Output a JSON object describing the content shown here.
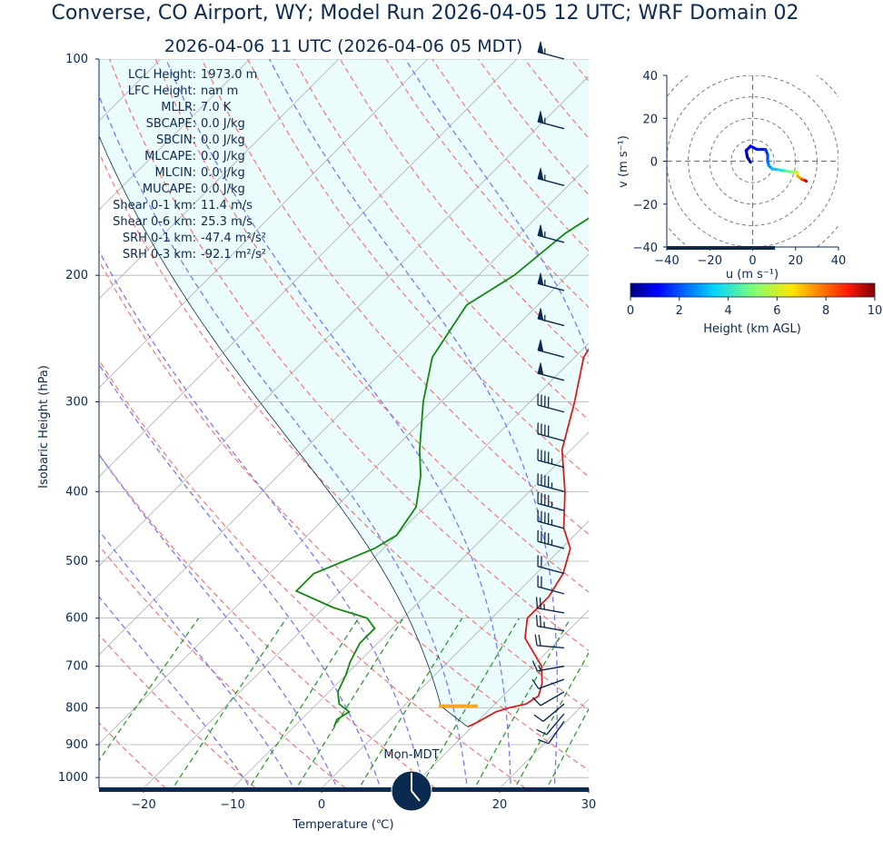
{
  "title": "Converse, CO Airport, WY; Model Run 2026-04-05 12 UTC; WRF Domain 02",
  "subtitle": "2026-04-06 11 UTC  (2026-04-06 05 MDT)",
  "skewt": {
    "xlabel": "Temperature (℃)",
    "ylabel": "Isobaric Height (hPa)",
    "x_ticks": [
      "−20",
      "−10",
      "0",
      "10",
      "20",
      "30"
    ],
    "x_tick_values": [
      -20,
      -10,
      0,
      10,
      20,
      30
    ],
    "y_ticks": [
      "100",
      "200",
      "300",
      "400",
      "500",
      "600",
      "700",
      "800",
      "900",
      "1000"
    ],
    "y_tick_values": [
      100,
      200,
      300,
      400,
      500,
      600,
      700,
      800,
      900,
      1000
    ],
    "xlim": [
      -25,
      30
    ],
    "ylim": [
      1035,
      100
    ]
  },
  "stats": [
    {
      "label": "LCL Height",
      "value": "1973.0 m"
    },
    {
      "label": "LFC Height",
      "value": "nan m"
    },
    {
      "label": "MLLR",
      "value": "7.0 K"
    },
    {
      "label": "SBCAPE",
      "value": "0.0 J/kg"
    },
    {
      "label": "SBCIN",
      "value": "0.0 J/kg"
    },
    {
      "label": "MLCAPE",
      "value": "0.0 J/kg"
    },
    {
      "label": "MLCIN",
      "value": "0.0 J/kg"
    },
    {
      "label": "MUCAPE",
      "value": "0.0 J/kg"
    },
    {
      "label": "Shear 0-1 km",
      "value": "11.4 m/s"
    },
    {
      "label": "Shear 0-6 km",
      "value": "25.3 m/s"
    },
    {
      "label": "SRH 0-1 km",
      "value": "-47.4 m²/s²"
    },
    {
      "label": "SRH 0-3 km",
      "value": "-92.1 m²/s²"
    }
  ],
  "clock_label": "Mon-MDT",
  "hodograph": {
    "xlabel": "u (m s⁻¹)",
    "ylabel": "v (m s⁻¹)",
    "x_ticks": [
      "−40",
      "−20",
      "0",
      "20",
      "40"
    ],
    "y_ticks": [
      "40",
      "20",
      "0",
      "−20",
      "−40"
    ],
    "lim": [
      -40,
      40
    ]
  },
  "colorbar": {
    "label": "Height (km AGL)",
    "ticks": [
      "0",
      "2",
      "4",
      "6",
      "8",
      "10"
    ],
    "range": [
      0,
      10
    ]
  },
  "colors": {
    "text": "#0b2a50",
    "temperature": "#e01a1a",
    "dewpoint": "#13870f",
    "parcel": "#0b2a50",
    "dry_adiabat": "#f08080",
    "moist_adiabat": "#7a7af2",
    "mixing_ratio": "#2e9b2e",
    "isotherm": "#b0b0b0",
    "cape_fill": "#eafcfc",
    "lcl_marker": "#f5a623"
  },
  "chart_data": [
    {
      "type": "line",
      "name": "skew-t",
      "temperature_profile": {
        "p": [
          100,
          115,
          150,
          190,
          220,
          260,
          300,
          350,
          400,
          450,
          480,
          520,
          560,
          600,
          640,
          700,
          740,
          770,
          790,
          800,
          810,
          840,
          850
        ],
        "t": [
          17,
          12,
          2,
          -18,
          -21,
          -19,
          -15,
          -11,
          -6,
          -2,
          1,
          3,
          4,
          4,
          6,
          11,
          13,
          14,
          13.5,
          12,
          11,
          10,
          9.5
        ]
      },
      "dewpoint_profile": {
        "p": [
          100,
          120,
          150,
          175,
          200,
          220,
          260,
          300,
          350,
          380,
          420,
          460,
          480,
          510,
          520,
          550,
          580,
          600,
          620,
          650,
          690,
          720,
          760,
          790,
          810,
          830,
          850
        ],
        "td": [
          -19,
          -27,
          -32,
          -35,
          -36,
          -38,
          -36,
          -32,
          -27,
          -24,
          -21,
          -20,
          -21,
          -24,
          -25,
          -25,
          -19,
          -14,
          -12,
          -12,
          -11,
          -10,
          -9,
          -7.5,
          -5.5,
          -6,
          -5.5
        ]
      },
      "lcl_hpa": 795,
      "lcl_temp_range": [
        3.9,
        8.3
      ],
      "wind_barbs": [
        {
          "p": 100,
          "speed_kt": 55,
          "dir": 285
        },
        {
          "p": 125,
          "speed_kt": 55,
          "dir": 285
        },
        {
          "p": 150,
          "speed_kt": 55,
          "dir": 285
        },
        {
          "p": 180,
          "speed_kt": 55,
          "dir": 285
        },
        {
          "p": 210,
          "speed_kt": 55,
          "dir": 285
        },
        {
          "p": 235,
          "speed_kt": 55,
          "dir": 285
        },
        {
          "p": 260,
          "speed_kt": 50,
          "dir": 285
        },
        {
          "p": 280,
          "speed_kt": 50,
          "dir": 285
        },
        {
          "p": 310,
          "speed_kt": 40,
          "dir": 285
        },
        {
          "p": 340,
          "speed_kt": 40,
          "dir": 285
        },
        {
          "p": 370,
          "speed_kt": 45,
          "dir": 285
        },
        {
          "p": 400,
          "speed_kt": 45,
          "dir": 285
        },
        {
          "p": 425,
          "speed_kt": 45,
          "dir": 285
        },
        {
          "p": 450,
          "speed_kt": 45,
          "dir": 285
        },
        {
          "p": 480,
          "speed_kt": 45,
          "dir": 285
        },
        {
          "p": 520,
          "speed_kt": 20,
          "dir": 285
        },
        {
          "p": 555,
          "speed_kt": 20,
          "dir": 285
        },
        {
          "p": 590,
          "speed_kt": 25,
          "dir": 280
        },
        {
          "p": 625,
          "speed_kt": 25,
          "dir": 280
        },
        {
          "p": 660,
          "speed_kt": 20,
          "dir": 275
        },
        {
          "p": 700,
          "speed_kt": 15,
          "dir": 260
        },
        {
          "p": 730,
          "speed_kt": 10,
          "dir": 250
        },
        {
          "p": 760,
          "speed_kt": 10,
          "dir": 240
        },
        {
          "p": 790,
          "speed_kt": 10,
          "dir": 230
        },
        {
          "p": 815,
          "speed_kt": 10,
          "dir": 220
        },
        {
          "p": 835,
          "speed_kt": 10,
          "dir": 215
        }
      ]
    },
    {
      "type": "line",
      "name": "hodograph",
      "points": [
        {
          "u": -1,
          "v": -0.5,
          "h": 0.0
        },
        {
          "u": -2.5,
          "v": 2,
          "h": 0.3
        },
        {
          "u": -3,
          "v": 5,
          "h": 0.6
        },
        {
          "u": -1,
          "v": 7,
          "h": 0.9
        },
        {
          "u": 2,
          "v": 5.5,
          "h": 1.2
        },
        {
          "u": 6,
          "v": 5.5,
          "h": 1.5
        },
        {
          "u": 7,
          "v": 3,
          "h": 1.8
        },
        {
          "u": 7,
          "v": 0,
          "h": 2.1
        },
        {
          "u": 7.5,
          "v": -2,
          "h": 2.5
        },
        {
          "u": 9,
          "v": -3.5,
          "h": 3.0
        },
        {
          "u": 12,
          "v": -4,
          "h": 3.6
        },
        {
          "u": 15,
          "v": -4.5,
          "h": 4.2
        },
        {
          "u": 18,
          "v": -5,
          "h": 5.0
        },
        {
          "u": 20.5,
          "v": -5,
          "h": 5.8
        },
        {
          "u": 21,
          "v": -7,
          "h": 6.8
        },
        {
          "u": 23,
          "v": -8.5,
          "h": 8.0
        },
        {
          "u": 24.5,
          "v": -9,
          "h": 9.0
        },
        {
          "u": 25,
          "v": -9.3,
          "h": 10.0
        }
      ],
      "rings": [
        10,
        20,
        30,
        40,
        50
      ]
    }
  ]
}
